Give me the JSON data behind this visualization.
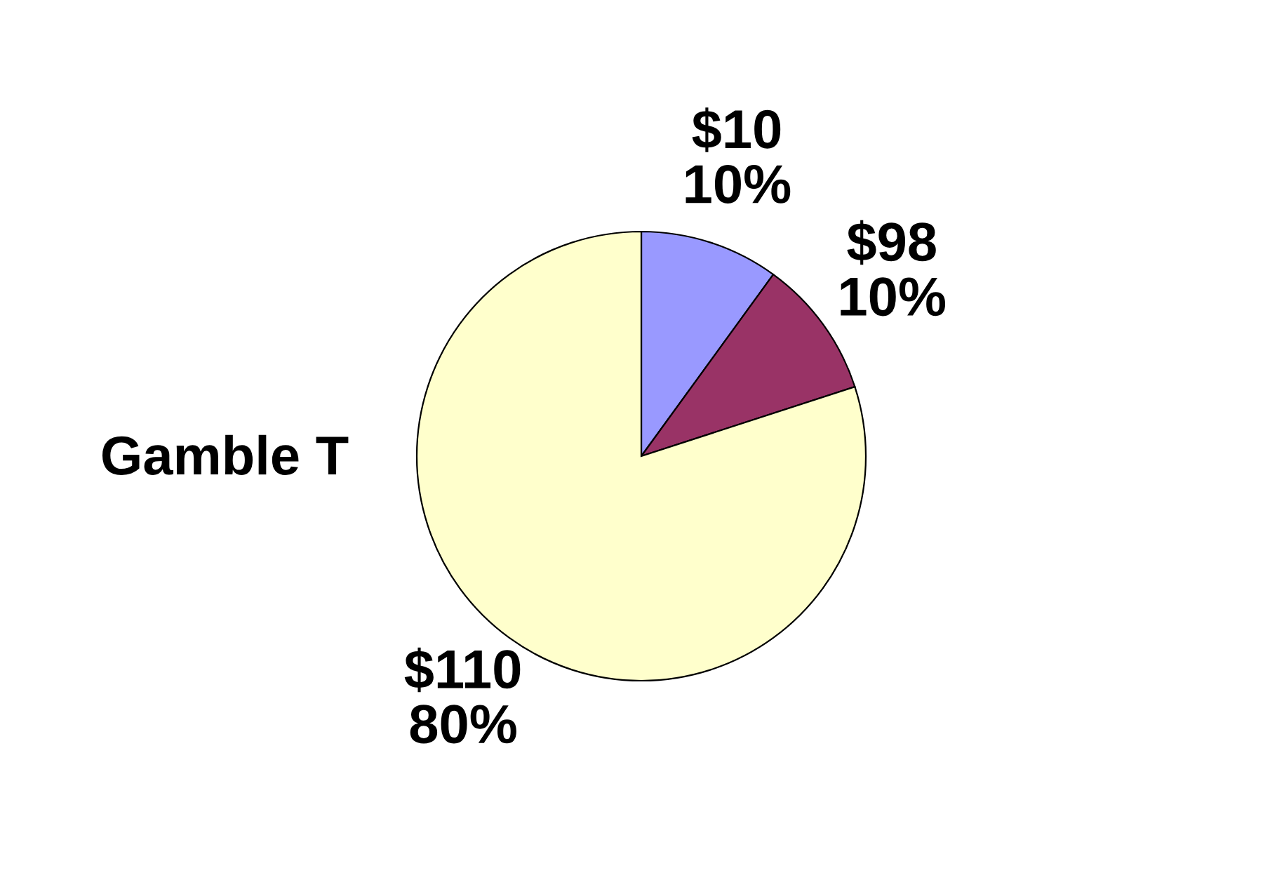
{
  "chart_data": {
    "type": "pie",
    "title": "Gamble T",
    "categories": [
      "$10",
      "$98",
      "$110"
    ],
    "values": [
      10,
      10,
      80
    ],
    "colors": [
      "#9999ff",
      "#993366",
      "#ffffcc"
    ],
    "value_labels": [
      "10%",
      "10%",
      "80%"
    ],
    "legend": false
  }
}
